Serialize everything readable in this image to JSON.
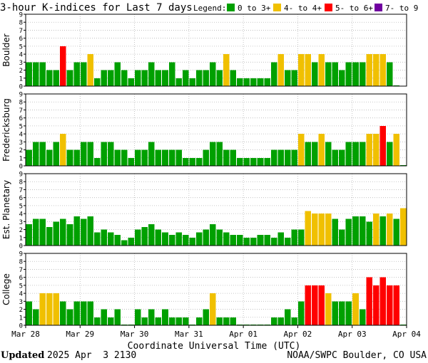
{
  "title": "3-hour K-indices for Last 7 days",
  "legend": {
    "label": "Legend:",
    "items": [
      {
        "text": "0 to 3+",
        "color": "#00a000"
      },
      {
        "text": "4- to 4+",
        "color": "#f0c000"
      },
      {
        "text": "5- to 6+",
        "color": "#ff0000"
      },
      {
        "text": "7- to 9",
        "color": "#7000a0"
      }
    ]
  },
  "xlabel": "Coordinate Universal Time (UTC)",
  "footer": {
    "updated_label": "Updated",
    "updated_value": "2025 Apr  3 2130",
    "credit": "NOAA/SWPC Boulder, CO USA"
  },
  "chart_data": {
    "type": "bar",
    "x_tick_labels": [
      "Mar 28",
      "Mar 29",
      "Mar 30",
      "Mar 31",
      "Apr 01",
      "Apr 02",
      "Apr 03",
      "Apr 04"
    ],
    "y_tick_labels": [
      "0",
      "1",
      "2",
      "3",
      "4",
      "5",
      "6",
      "7",
      "8",
      "9"
    ],
    "ylim": [
      0,
      9
    ],
    "grid": true,
    "series": [
      {
        "name": "Boulder",
        "values": [
          3,
          3,
          3,
          2,
          2,
          5,
          2,
          3,
          3,
          4,
          1,
          2,
          2,
          3,
          2,
          1,
          2,
          2,
          3,
          2,
          2,
          3,
          1,
          2,
          1,
          2,
          2,
          3,
          2,
          4,
          2,
          1,
          1,
          1,
          1,
          1,
          3,
          4,
          2,
          2,
          4,
          4,
          3,
          4,
          3,
          3,
          2,
          3,
          3,
          3,
          4,
          4,
          4,
          3,
          0.1
        ]
      },
      {
        "name": "Fredericksburg",
        "values": [
          2,
          3,
          3,
          2,
          3,
          4,
          2,
          2,
          3,
          3,
          1,
          3,
          3,
          2,
          2,
          1,
          2,
          2,
          3,
          2,
          2,
          2,
          2,
          1,
          1,
          1,
          2,
          3,
          3,
          2,
          2,
          1,
          1,
          1,
          1,
          1,
          2,
          2,
          2,
          2,
          4,
          3,
          3,
          4,
          3,
          2,
          2,
          3,
          3,
          3,
          4,
          4,
          5,
          3,
          4,
          0.1
        ]
      },
      {
        "name": "Est. Planetary",
        "values": [
          2.67,
          3.33,
          3.33,
          2.33,
          3,
          3.33,
          2.67,
          3.67,
          3.33,
          3.67,
          1.67,
          2,
          1.67,
          1.33,
          0.67,
          1,
          2,
          2.33,
          2.67,
          2,
          1.67,
          1.33,
          1.67,
          1.33,
          1,
          1.67,
          2,
          2.67,
          2,
          1.67,
          1.33,
          1.33,
          1,
          1,
          1.33,
          1.33,
          1,
          1.67,
          1,
          2,
          2,
          4.33,
          4,
          4,
          4,
          3.33,
          2,
          3.33,
          3.67,
          3.67,
          3,
          4,
          3.67,
          4,
          3.33,
          4.67
        ]
      },
      {
        "name": "College",
        "values": [
          3,
          2,
          4,
          4,
          4,
          3,
          2,
          3,
          3,
          3,
          1,
          2,
          1,
          2,
          0.1,
          0.1,
          2,
          1,
          2,
          1,
          2,
          1,
          1,
          1,
          0.1,
          1,
          2,
          4,
          1,
          1,
          1,
          0.1,
          0.1,
          0.1,
          0.1,
          0.1,
          1,
          1,
          2,
          1,
          3,
          5,
          5,
          5,
          4,
          3,
          3,
          3,
          4,
          2,
          6,
          5,
          6,
          5,
          5,
          0.1
        ]
      }
    ]
  }
}
